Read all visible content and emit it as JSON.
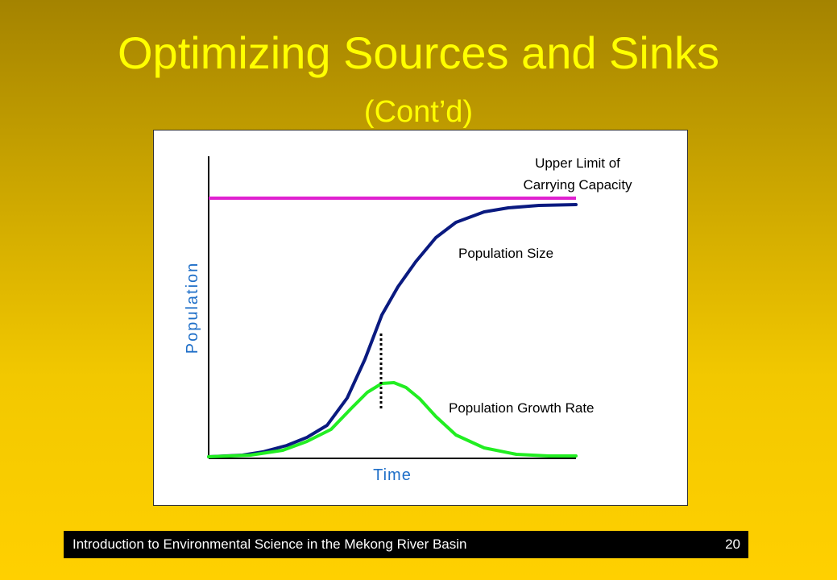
{
  "slide": {
    "title": "Optimizing Sources and Sinks",
    "subtitle": "(Cont’d)"
  },
  "chart_data": {
    "type": "line",
    "xlabel": "Time",
    "ylabel": "Population",
    "annotations": [
      "Upper Limit of",
      "Carrying Capacity",
      "Population Size",
      "Population Growth Rate"
    ],
    "series": [
      {
        "name": "Upper Limit of Carrying Capacity",
        "color": "#e020d0"
      },
      {
        "name": "Population Size",
        "color": "#0a1a80"
      },
      {
        "name": "Population Growth Rate",
        "color": "#22ee22"
      }
    ],
    "marker": {
      "style": "dotted",
      "color": "#000000",
      "meaning": "inflection point"
    },
    "axis_color": "#000000",
    "axis_label_color": "#1f6fc8"
  },
  "footer": {
    "text": "Introduction to Environmental Science in the Mekong River Basin",
    "page": "20"
  }
}
